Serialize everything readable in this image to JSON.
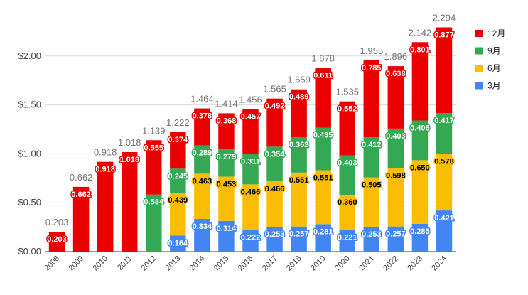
{
  "chart_data": {
    "type": "bar",
    "stacked": true,
    "categories": [
      "2008",
      "2009",
      "2010",
      "2011",
      "2012",
      "2013",
      "2014",
      "2015",
      "2016",
      "2017",
      "2018",
      "2019",
      "2020",
      "2021",
      "2022",
      "2023",
      "2024"
    ],
    "series": [
      {
        "name": "3月",
        "color": "#4285f4",
        "values": [
          null,
          null,
          null,
          null,
          null,
          0.164,
          0.334,
          0.314,
          0.222,
          0.253,
          0.257,
          0.281,
          0.221,
          0.253,
          0.257,
          0.285,
          0.421
        ]
      },
      {
        "name": "6月",
        "color": "#fbbc04",
        "values": [
          null,
          null,
          null,
          null,
          null,
          0.439,
          0.463,
          0.453,
          0.466,
          0.466,
          0.551,
          0.551,
          0.36,
          0.505,
          0.598,
          0.65,
          0.578
        ]
      },
      {
        "name": "9月",
        "color": "#34a853",
        "values": [
          null,
          null,
          null,
          null,
          0.584,
          0.245,
          0.289,
          0.279,
          0.311,
          0.354,
          0.362,
          0.435,
          0.403,
          0.412,
          0.403,
          0.406,
          0.417
        ]
      },
      {
        "name": "12月",
        "color": "#ea0000",
        "values": [
          0.203,
          0.662,
          0.918,
          1.018,
          0.555,
          0.374,
          0.378,
          0.368,
          0.457,
          0.492,
          0.489,
          0.611,
          0.552,
          0.785,
          0.638,
          0.801,
          0.877
        ]
      }
    ],
    "totals": [
      "0.203",
      "0.662",
      "0.918",
      "1.018",
      "1.139",
      "1.222",
      "1.464",
      "1.414",
      "1.456",
      "1.565",
      "1.659",
      "1.878",
      "1.535",
      "1.955",
      "1.896",
      "2.142",
      "2.294"
    ],
    "y_ticks": [
      "$0.00",
      "$0.50",
      "$1.00",
      "$1.50",
      "$2.00"
    ],
    "y_tick_values": [
      0,
      0.5,
      1.0,
      1.5,
      2.0
    ],
    "ylim": [
      0,
      2.5
    ],
    "grid": true,
    "legend_position": "right",
    "legend_order": [
      "12月",
      "9月",
      "6月",
      "3月"
    ]
  }
}
